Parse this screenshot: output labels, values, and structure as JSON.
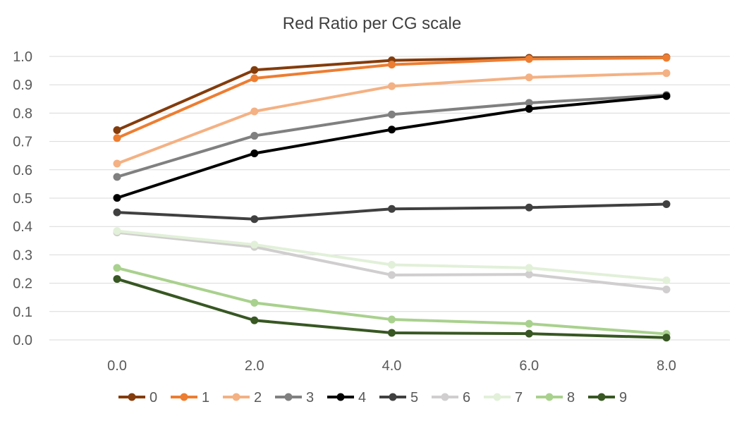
{
  "chart_data": {
    "type": "line",
    "title": "Red Ratio per CG scale",
    "xlabel": "",
    "ylabel": "",
    "x": [
      0.0,
      2.0,
      4.0,
      6.0,
      8.0
    ],
    "x_tick_labels": [
      "0.0",
      "2.0",
      "4.0",
      "6.0",
      "8.0"
    ],
    "y_tick_labels": [
      "0.0",
      "0.1",
      "0.2",
      "0.3",
      "0.4",
      "0.5",
      "0.6",
      "0.7",
      "0.8",
      "0.9",
      "1.0"
    ],
    "ylim": [
      0,
      1.0
    ],
    "grid": true,
    "legend_position": "bottom",
    "series": [
      {
        "name": "0",
        "color": "#843c0c",
        "values": [
          0.74,
          0.952,
          0.986,
          0.995,
          0.997
        ]
      },
      {
        "name": "1",
        "color": "#ed7d31",
        "values": [
          0.712,
          0.923,
          0.971,
          0.991,
          0.995
        ]
      },
      {
        "name": "2",
        "color": "#f4b183",
        "values": [
          0.622,
          0.806,
          0.895,
          0.926,
          0.941
        ]
      },
      {
        "name": "3",
        "color": "#808080",
        "values": [
          0.575,
          0.72,
          0.795,
          0.836,
          0.864
        ]
      },
      {
        "name": "4",
        "color": "#000000",
        "values": [
          0.501,
          0.658,
          0.742,
          0.815,
          0.86
        ]
      },
      {
        "name": "5",
        "color": "#404040",
        "values": [
          0.45,
          0.426,
          0.462,
          0.467,
          0.479
        ]
      },
      {
        "name": "6",
        "color": "#d0cece",
        "values": [
          0.379,
          0.328,
          0.229,
          0.231,
          0.178
        ]
      },
      {
        "name": "7",
        "color": "#e2f0d9",
        "values": [
          0.384,
          0.336,
          0.265,
          0.254,
          0.21
        ]
      },
      {
        "name": "8",
        "color": "#a9d18e",
        "values": [
          0.254,
          0.131,
          0.072,
          0.057,
          0.021
        ]
      },
      {
        "name": "9",
        "color": "#385723",
        "values": [
          0.215,
          0.069,
          0.025,
          0.022,
          0.008
        ]
      }
    ]
  }
}
